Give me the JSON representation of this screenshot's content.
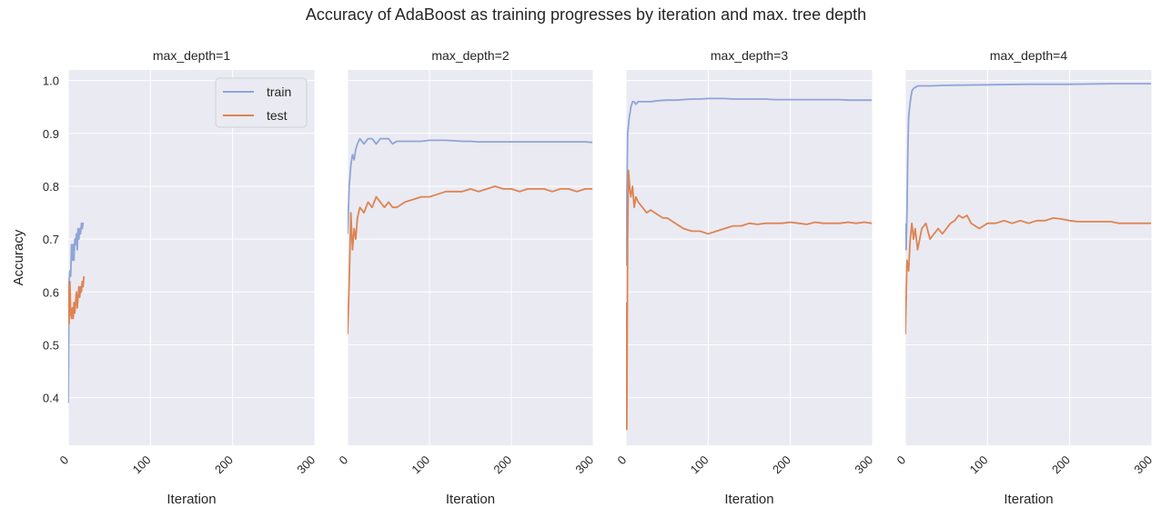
{
  "figure": {
    "title": "Accuracy of AdaBoost as training progresses by iteration and max. tree depth",
    "colors": {
      "background": "#eaeaf2",
      "grid": "#ffffff",
      "train": "#8fa5d6",
      "test": "#dd8452",
      "text": "#262626"
    }
  },
  "chart_data": [
    {
      "type": "line",
      "title": "max_depth=1",
      "xlabel": "Iteration",
      "ylabel": "Accuracy",
      "xlim": [
        0,
        300
      ],
      "ylim": [
        0.31,
        1.02
      ],
      "xticks": [
        "0",
        "100",
        "200",
        "300"
      ],
      "yticks": [
        "0.4",
        "0.5",
        "0.6",
        "0.7",
        "0.8",
        "0.9",
        "1.0"
      ],
      "grid": true,
      "legend": {
        "placement": "top-right",
        "entries": [
          "train",
          "test"
        ]
      },
      "series": [
        {
          "name": "train",
          "color": "#8fa5d6",
          "x": [
            0,
            1,
            2,
            3,
            4,
            5,
            6,
            7,
            8,
            9,
            10,
            11,
            12,
            13,
            14,
            15,
            16,
            17,
            18,
            19
          ],
          "y": [
            0.39,
            0.62,
            0.64,
            0.63,
            0.69,
            0.66,
            0.69,
            0.66,
            0.7,
            0.69,
            0.71,
            0.68,
            0.72,
            0.7,
            0.72,
            0.71,
            0.73,
            0.72,
            0.73,
            0.73
          ]
        },
        {
          "name": "test",
          "color": "#dd8452",
          "x": [
            0,
            1,
            2,
            3,
            4,
            5,
            6,
            7,
            8,
            9,
            10,
            11,
            12,
            13,
            14,
            15,
            16,
            17,
            18,
            19
          ],
          "y": [
            0.61,
            0.54,
            0.62,
            0.56,
            0.55,
            0.57,
            0.55,
            0.58,
            0.56,
            0.58,
            0.6,
            0.57,
            0.59,
            0.61,
            0.59,
            0.61,
            0.6,
            0.62,
            0.61,
            0.63
          ]
        }
      ]
    },
    {
      "type": "line",
      "title": "max_depth=2",
      "xlabel": "Iteration",
      "xlim": [
        0,
        300
      ],
      "ylim": [
        0.31,
        1.02
      ],
      "xticks": [
        "0",
        "100",
        "200",
        "300"
      ],
      "grid": true,
      "series": [
        {
          "name": "train",
          "color": "#8fa5d6",
          "x": [
            0,
            2,
            4,
            6,
            8,
            10,
            12,
            15,
            20,
            25,
            30,
            35,
            40,
            45,
            50,
            55,
            60,
            70,
            80,
            90,
            100,
            110,
            120,
            130,
            140,
            150,
            160,
            170,
            180,
            190,
            200,
            210,
            220,
            230,
            240,
            250,
            260,
            270,
            280,
            290,
            299
          ],
          "y": [
            0.71,
            0.8,
            0.84,
            0.86,
            0.85,
            0.87,
            0.88,
            0.89,
            0.88,
            0.89,
            0.89,
            0.88,
            0.89,
            0.89,
            0.89,
            0.88,
            0.885,
            0.885,
            0.885,
            0.885,
            0.887,
            0.887,
            0.887,
            0.886,
            0.885,
            0.885,
            0.884,
            0.884,
            0.884,
            0.884,
            0.884,
            0.884,
            0.884,
            0.884,
            0.884,
            0.884,
            0.884,
            0.884,
            0.884,
            0.884,
            0.883
          ]
        },
        {
          "name": "test",
          "color": "#dd8452",
          "x": [
            0,
            2,
            4,
            6,
            8,
            10,
            12,
            15,
            20,
            25,
            30,
            35,
            40,
            45,
            50,
            55,
            60,
            70,
            80,
            90,
            100,
            110,
            120,
            130,
            140,
            150,
            160,
            170,
            180,
            190,
            200,
            210,
            220,
            230,
            240,
            250,
            260,
            270,
            280,
            290,
            299
          ],
          "y": [
            0.52,
            0.62,
            0.75,
            0.68,
            0.72,
            0.7,
            0.74,
            0.76,
            0.75,
            0.77,
            0.76,
            0.78,
            0.77,
            0.76,
            0.77,
            0.76,
            0.76,
            0.77,
            0.775,
            0.78,
            0.78,
            0.785,
            0.79,
            0.79,
            0.79,
            0.795,
            0.79,
            0.795,
            0.8,
            0.795,
            0.795,
            0.79,
            0.795,
            0.795,
            0.795,
            0.79,
            0.795,
            0.795,
            0.79,
            0.795,
            0.795
          ]
        }
      ]
    },
    {
      "type": "line",
      "title": "max_depth=3",
      "xlabel": "Iteration",
      "xlim": [
        0,
        300
      ],
      "ylim": [
        0.31,
        1.02
      ],
      "xticks": [
        "0",
        "100",
        "200",
        "300"
      ],
      "grid": true,
      "series": [
        {
          "name": "train",
          "color": "#8fa5d6",
          "x": [
            0,
            2,
            4,
            6,
            8,
            10,
            12,
            15,
            20,
            25,
            30,
            40,
            50,
            60,
            70,
            80,
            90,
            100,
            110,
            120,
            130,
            140,
            150,
            160,
            170,
            180,
            190,
            200,
            210,
            220,
            230,
            240,
            250,
            260,
            270,
            280,
            290,
            299
          ],
          "y": [
            0.65,
            0.9,
            0.93,
            0.95,
            0.96,
            0.96,
            0.955,
            0.96,
            0.96,
            0.96,
            0.96,
            0.962,
            0.963,
            0.963,
            0.964,
            0.965,
            0.965,
            0.966,
            0.966,
            0.966,
            0.965,
            0.965,
            0.965,
            0.965,
            0.965,
            0.964,
            0.964,
            0.964,
            0.964,
            0.964,
            0.964,
            0.964,
            0.964,
            0.964,
            0.963,
            0.963,
            0.963,
            0.963
          ]
        },
        {
          "name": "test",
          "color": "#dd8452",
          "x": [
            0,
            1,
            2,
            3,
            4,
            5,
            6,
            8,
            10,
            12,
            15,
            20,
            25,
            30,
            35,
            40,
            45,
            50,
            55,
            60,
            70,
            80,
            90,
            100,
            110,
            120,
            130,
            140,
            150,
            160,
            170,
            180,
            190,
            200,
            210,
            220,
            230,
            240,
            250,
            260,
            270,
            280,
            290,
            299
          ],
          "y": [
            0.58,
            0.34,
            0.7,
            0.83,
            0.81,
            0.79,
            0.78,
            0.8,
            0.76,
            0.78,
            0.77,
            0.76,
            0.75,
            0.755,
            0.75,
            0.745,
            0.74,
            0.74,
            0.735,
            0.73,
            0.72,
            0.715,
            0.715,
            0.71,
            0.715,
            0.72,
            0.725,
            0.725,
            0.73,
            0.728,
            0.73,
            0.73,
            0.73,
            0.732,
            0.73,
            0.728,
            0.732,
            0.73,
            0.73,
            0.73,
            0.732,
            0.73,
            0.732,
            0.73
          ]
        }
      ]
    },
    {
      "type": "line",
      "title": "max_depth=4",
      "xlabel": "Iteration",
      "xlim": [
        0,
        300
      ],
      "ylim": [
        0.31,
        1.02
      ],
      "xticks": [
        "0",
        "100",
        "200",
        "300"
      ],
      "grid": true,
      "series": [
        {
          "name": "train",
          "color": "#8fa5d6",
          "x": [
            0,
            1,
            2,
            3,
            4,
            6,
            8,
            10,
            15,
            20,
            30,
            50,
            100,
            150,
            200,
            250,
            299
          ],
          "y": [
            0.73,
            0.68,
            0.75,
            0.86,
            0.93,
            0.96,
            0.98,
            0.985,
            0.99,
            0.99,
            0.99,
            0.991,
            0.992,
            0.993,
            0.993,
            0.994,
            0.994
          ]
        },
        {
          "name": "test",
          "color": "#dd8452",
          "x": [
            0,
            2,
            4,
            6,
            8,
            10,
            12,
            15,
            20,
            25,
            30,
            35,
            40,
            45,
            50,
            55,
            60,
            65,
            70,
            75,
            80,
            90,
            100,
            110,
            120,
            130,
            140,
            150,
            160,
            170,
            180,
            190,
            200,
            210,
            220,
            230,
            240,
            250,
            260,
            270,
            280,
            290,
            299
          ],
          "y": [
            0.52,
            0.66,
            0.64,
            0.7,
            0.73,
            0.7,
            0.72,
            0.68,
            0.72,
            0.73,
            0.7,
            0.71,
            0.72,
            0.71,
            0.72,
            0.73,
            0.735,
            0.745,
            0.74,
            0.745,
            0.73,
            0.72,
            0.73,
            0.73,
            0.735,
            0.73,
            0.735,
            0.73,
            0.735,
            0.735,
            0.74,
            0.738,
            0.735,
            0.733,
            0.733,
            0.733,
            0.733,
            0.733,
            0.73,
            0.73,
            0.73,
            0.73,
            0.73
          ]
        }
      ]
    }
  ]
}
